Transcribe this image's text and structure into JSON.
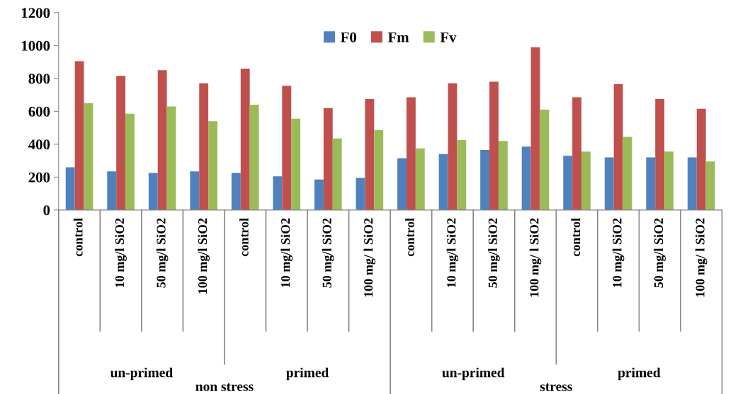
{
  "chart_data": {
    "type": "bar",
    "categories": [
      "control",
      "10 mg/l SiO2",
      "50 mg/l SiO2",
      "100 mg/l SiO2",
      "control",
      "10 mg/l SiO2",
      "50 mg/l SiO2",
      "100 mg/ l SiO2",
      "control",
      "10 mg/l SiO2",
      "50 mg/l SiO2",
      "100 mg/ l SiO2",
      "control",
      "10 mg/l SiO2",
      "50 mg/l SiO2",
      "100 mg/ l SiO2"
    ],
    "series": [
      {
        "name": "F0",
        "color": "#4f81bd",
        "values": [
          260,
          235,
          225,
          235,
          225,
          205,
          185,
          195,
          315,
          340,
          365,
          385,
          330,
          320,
          320,
          320
        ]
      },
      {
        "name": "Fm",
        "color": "#c0504d",
        "values": [
          905,
          815,
          850,
          770,
          860,
          755,
          620,
          675,
          685,
          770,
          780,
          990,
          685,
          765,
          675,
          615
        ]
      },
      {
        "name": "Fv",
        "color": "#9bbb59",
        "values": [
          650,
          585,
          630,
          540,
          640,
          555,
          435,
          485,
          375,
          425,
          420,
          610,
          355,
          445,
          355,
          295
        ]
      }
    ],
    "annotations": [
      "un-primed",
      "primed",
      "un-primed",
      "primed",
      "non stress",
      "stress"
    ],
    "ylim": [
      0,
      1200
    ],
    "yticks": [
      0,
      200,
      400,
      600,
      800,
      1000,
      1200
    ],
    "grid": false,
    "legend": "top"
  }
}
